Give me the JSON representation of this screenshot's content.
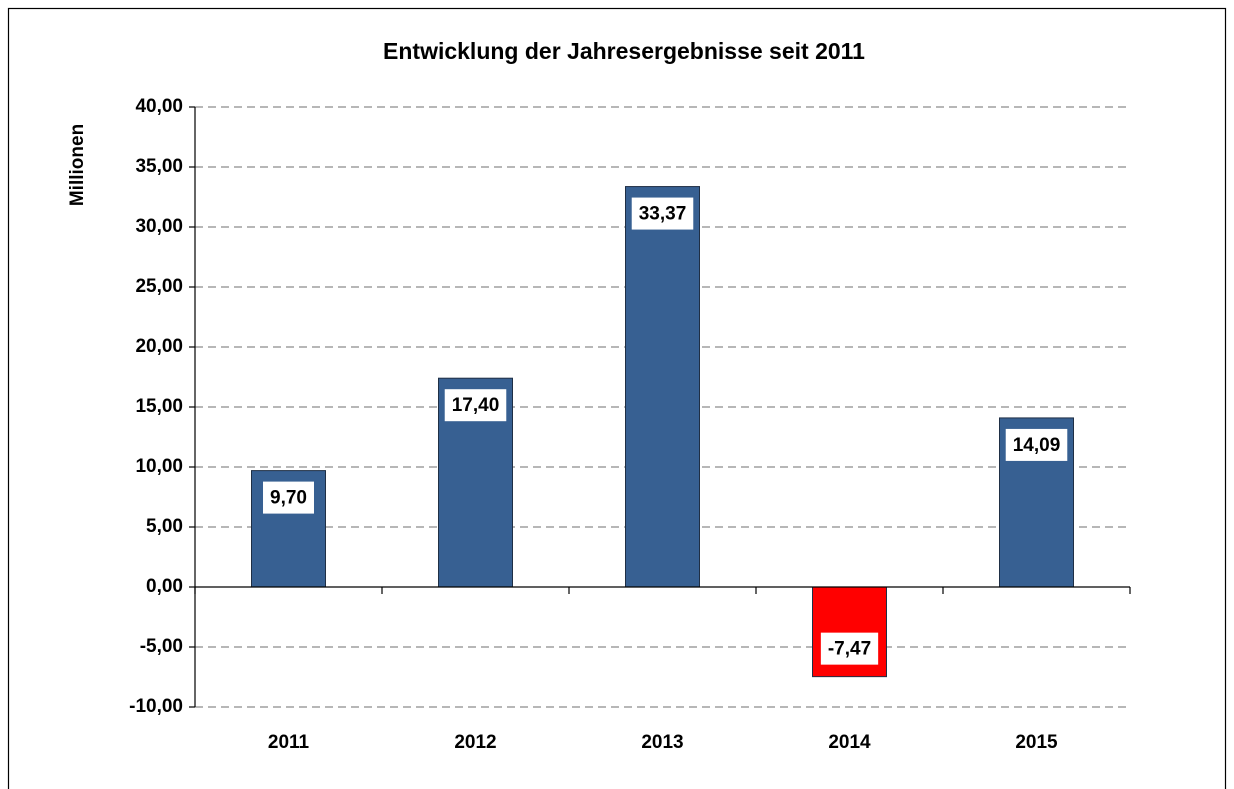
{
  "chart_data": {
    "type": "bar",
    "title": "Entwicklung der Jahresergebnisse seit 2011",
    "y_label": "Millionen",
    "categories": [
      "2011",
      "2012",
      "2013",
      "2014",
      "2015"
    ],
    "values": [
      9.7,
      17.4,
      33.37,
      -7.47,
      14.09
    ],
    "value_labels": [
      "9,70",
      "17,40",
      "33,37",
      "-7,47",
      "14,09"
    ],
    "colors": [
      "#376092",
      "#376092",
      "#376092",
      "#ff0000",
      "#376092"
    ],
    "ylim": [
      -10,
      40
    ],
    "yticks": [
      {
        "value": -10,
        "label": "-10,00"
      },
      {
        "value": -5,
        "label": "-5,00"
      },
      {
        "value": 0,
        "label": "0,00"
      },
      {
        "value": 5,
        "label": "5,00"
      },
      {
        "value": 10,
        "label": "10,00"
      },
      {
        "value": 15,
        "label": "15,00"
      },
      {
        "value": 20,
        "label": "20,00"
      },
      {
        "value": 25,
        "label": "25,00"
      },
      {
        "value": 30,
        "label": "30,00"
      },
      {
        "value": 35,
        "label": "35,00"
      },
      {
        "value": 40,
        "label": "40,00"
      }
    ],
    "grid": true
  }
}
